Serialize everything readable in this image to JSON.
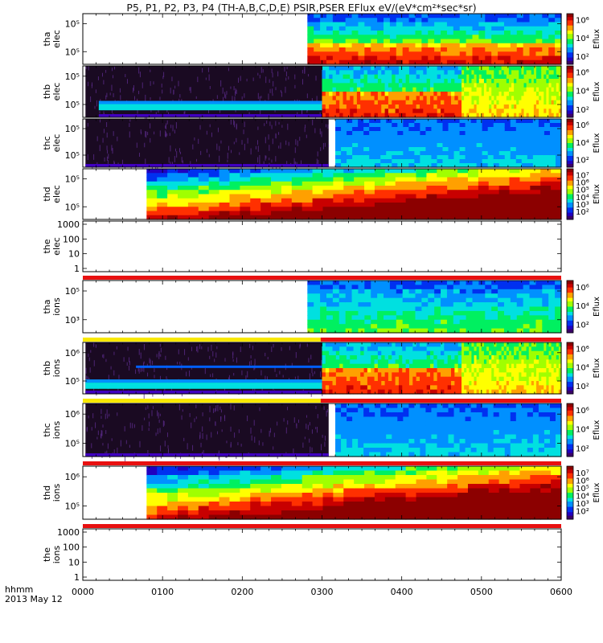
{
  "chart_data": {
    "type": "heatmap",
    "title": "P5, P1, P2, P3, P4 (TH-A,B,C,D,E) PSIR,PSER EFlux eV/(eV*cm²*sec*sr)",
    "xlabel_top": "hhmm",
    "xlabel_bottom": "2013 May 12",
    "x_ticks": [
      "0000",
      "0100",
      "0200",
      "0300",
      "0400",
      "0500",
      "0600"
    ],
    "colorbar_label": "Eflux",
    "panels": [
      {
        "label1": "tha",
        "label2": "elec",
        "kind": "spec",
        "ylog": true,
        "yticks": [
          "10⁵",
          "10⁵"
        ],
        "cbticks": [
          "10⁶",
          "10⁴",
          "10²"
        ],
        "segments": [
          {
            "start": "0000",
            "end": "0249",
            "fill": "none"
          },
          {
            "start": "0249",
            "end": "0600",
            "fill": "spectrogram"
          }
        ]
      },
      {
        "label1": "thb",
        "label2": "elec",
        "kind": "spec",
        "ylog": true,
        "yticks": [
          "10⁵",
          "10⁵"
        ],
        "cbticks": [
          "10⁶",
          "10⁴",
          "10²"
        ],
        "segments": [
          {
            "start": "0000",
            "end": "0002",
            "fill": "none"
          },
          {
            "start": "0002",
            "end": "0300",
            "fill": "noise"
          },
          {
            "start": "0300",
            "end": "0445",
            "fill": "spectrogram"
          },
          {
            "start": "0445",
            "end": "0600",
            "fill": "spectrogram"
          }
        ]
      },
      {
        "label1": "thc",
        "label2": "elec",
        "kind": "spec",
        "ylog": true,
        "yticks": [
          "10⁵",
          "10⁵"
        ],
        "cbticks": [
          "10⁶",
          "10⁴",
          "10²"
        ],
        "segments": [
          {
            "start": "0000",
            "end": "0002",
            "fill": "none"
          },
          {
            "start": "0002",
            "end": "0305",
            "fill": "noise"
          },
          {
            "start": "0310",
            "end": "0600",
            "fill": "spectrogram"
          }
        ]
      },
      {
        "label1": "thd",
        "label2": "elec",
        "kind": "spec",
        "ylog": true,
        "yticks": [
          "10⁵",
          "10⁵"
        ],
        "cbticks": [
          "10⁷",
          "10⁶",
          "10⁵",
          "10⁴",
          "10³",
          "10²"
        ],
        "segments": [
          {
            "start": "0000",
            "end": "0048",
            "fill": "none"
          },
          {
            "start": "0048",
            "end": "0600",
            "fill": "spectrogram"
          }
        ]
      },
      {
        "label1": "the",
        "label2": "elec",
        "kind": "empty",
        "ylog": true,
        "yticks": [
          "1000",
          "100",
          "10",
          "1"
        ],
        "cbticks": [],
        "segments": []
      },
      {
        "label1": "tha",
        "label2": "ions",
        "kind": "spec",
        "ylog": true,
        "yticks": [
          "10⁵",
          "10³"
        ],
        "cbticks": [
          "10⁶",
          "10⁴",
          "10²"
        ],
        "segments": [
          {
            "start": "0000",
            "end": "0249",
            "fill": "none"
          },
          {
            "start": "0249",
            "end": "0600",
            "fill": "spectrogram"
          }
        ]
      },
      {
        "label1": "thb",
        "label2": "ions",
        "kind": "spec",
        "ylog": true,
        "yticks": [
          "10⁶",
          "10⁵"
        ],
        "cbticks": [
          "10⁶",
          "10⁴",
          "10²"
        ],
        "segments": [
          {
            "start": "0000",
            "end": "0002",
            "fill": "none"
          },
          {
            "start": "0002",
            "end": "0300",
            "fill": "noise"
          },
          {
            "start": "0300",
            "end": "0445",
            "fill": "spectrogram"
          },
          {
            "start": "0445",
            "end": "0600",
            "fill": "spectrogram"
          }
        ]
      },
      {
        "label1": "thc",
        "label2": "ions",
        "kind": "spec",
        "ylog": true,
        "yticks": [
          "10⁶",
          "10⁵"
        ],
        "cbticks": [
          "10⁶",
          "10⁴",
          "10²"
        ],
        "segments": [
          {
            "start": "0000",
            "end": "0002",
            "fill": "none"
          },
          {
            "start": "0002",
            "end": "0305",
            "fill": "noise"
          },
          {
            "start": "0310",
            "end": "0600",
            "fill": "spectrogram"
          }
        ]
      },
      {
        "label1": "thd",
        "label2": "ions",
        "kind": "spec",
        "ylog": true,
        "yticks": [
          "10⁶",
          "10⁵"
        ],
        "cbticks": [
          "10⁷",
          "10⁶",
          "10⁵",
          "10⁴",
          "10³",
          "10²"
        ],
        "segments": [
          {
            "start": "0000",
            "end": "0048",
            "fill": "none"
          },
          {
            "start": "0048",
            "end": "0600",
            "fill": "spectrogram"
          }
        ]
      },
      {
        "label1": "the",
        "label2": "ions",
        "kind": "empty",
        "ylog": true,
        "yticks": [
          "1000",
          "100",
          "10",
          "1"
        ],
        "cbticks": [],
        "segments": []
      }
    ],
    "mode_bars": [
      {
        "after_panel": "the elec",
        "segments": [
          {
            "start": "0000",
            "end": "0600",
            "color": "#e81010"
          }
        ]
      },
      {
        "after_panel": "tha ions",
        "segments": [
          {
            "start": "0000",
            "end": "0259",
            "color": "#f8e800"
          },
          {
            "start": "0259",
            "end": "0600",
            "color": "#e81010"
          }
        ]
      },
      {
        "after_panel": "thb ions",
        "segments": [
          {
            "start": "0000",
            "end": "0259",
            "color": "#f8e800"
          },
          {
            "start": "0259",
            "end": "0600",
            "color": "#e81010"
          }
        ]
      },
      {
        "after_panel": "thc ions",
        "segments": [
          {
            "start": "0000",
            "end": "0600",
            "color": "#e81010"
          }
        ]
      },
      {
        "after_panel": "thd ions",
        "segments": [
          {
            "start": "0000",
            "end": "0600",
            "color": "#e81010"
          }
        ]
      }
    ],
    "colormap": [
      "#3a006a",
      "#2000c0",
      "#0030f0",
      "#0090ff",
      "#00e0e0",
      "#00f060",
      "#a0ff00",
      "#ffff00",
      "#ffa000",
      "#ff3000",
      "#c80000",
      "#8c0000"
    ]
  }
}
